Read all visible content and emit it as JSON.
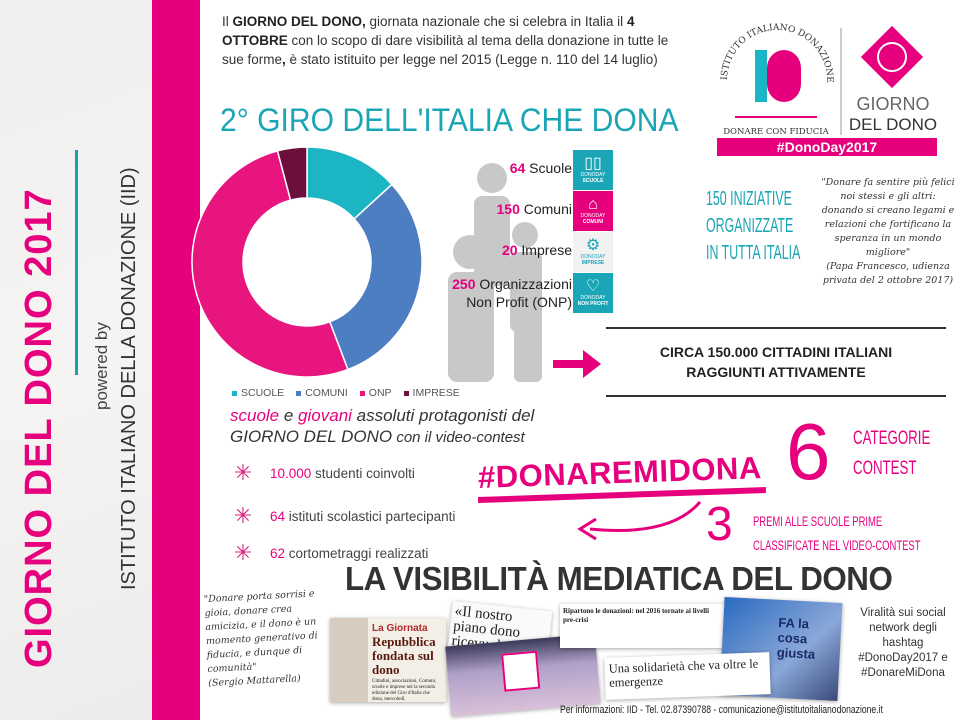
{
  "sidebar": {
    "title": "GIORNO DEL DONO 2017",
    "powered_by": "powered by",
    "institute": "ISTITUTO ITALIANO DELLA DONAZIONE (IID)"
  },
  "intro": {
    "p1": "Il ",
    "b1": "GIORNO DEL DONO,",
    "p2": " giornata nazionale che si celebra in Italia il ",
    "b2": "4 OTTOBRE",
    "p3": " con lo scopo di dare visibilità al tema della donazione in tutte le sue forme",
    "b3": ",",
    "p4": " è stato istituito per legge nel 2015 (Legge n. 110 del 14 luglio)"
  },
  "logo": {
    "arc_text": "ISTITUTO ITALIANO DONAZIONE",
    "monogram": "ID",
    "tagline": "DONARE CON FIDUCIA",
    "giorno": "GIORNO",
    "del_dono": "DEL DONO",
    "hashtag": "#DonoDay2017"
  },
  "section_title": "2° GIRO DELL'ITALIA CHE DONA",
  "chart_data": {
    "type": "pie",
    "donut": true,
    "categories": [
      "SCUOLE",
      "COMUNI",
      "ONP",
      "IMPRESE"
    ],
    "values": [
      64,
      150,
      250,
      20
    ],
    "colors": [
      "#1cb5c4",
      "#4e7ec2",
      "#e8157f",
      "#6c0f3c"
    ],
    "legend_placement": "bottom"
  },
  "counts": [
    {
      "n": "64",
      "label": " Scuole"
    },
    {
      "n": "150",
      "label": " Comuni"
    },
    {
      "n": "20",
      "label": " Imprese"
    },
    {
      "n": "250",
      "label": " Organizzazioni",
      "label2": "Non Profit (ONP)"
    }
  ],
  "tiles": [
    {
      "icon": "book",
      "brand": "DONODAY",
      "label": "SCUOLE",
      "color": "#1ba6b8"
    },
    {
      "icon": "building",
      "brand": "DONODAY",
      "label": "COMUNI",
      "color": "#e6007e"
    },
    {
      "icon": "gears",
      "brand": "DONODAY",
      "label": "IMPRESE",
      "color": "#f2f2f2"
    },
    {
      "icon": "heart",
      "brand": "DONODAY",
      "label": "NON PROFIT",
      "color": "#1ba6b8"
    }
  ],
  "iniziative": [
    "150 INIZIATIVE",
    "ORGANIZZATE",
    "IN TUTTA ITALIA"
  ],
  "quote_pope": {
    "text": "\"Donare fa sentire più felici noi stessi e gli altri: donando si creano legami e relazioni che fortificano la speranza in un mondo migliore\"",
    "source": "(Papa Francesco, udienza privata del 2 ottobre 2017)"
  },
  "citizens": [
    "CIRCA 150.000 CITTADINI ITALIANI",
    "RAGGIUNTI ATTIVAMENTE"
  ],
  "protagonists": {
    "w1": "scuole",
    "w2": " e ",
    "w3": "giovani",
    "w4": " assoluti protagonisti del",
    "line2a": "GIORNO DEL DONO",
    "line2b": " con il video-contest"
  },
  "stats": [
    {
      "n": "10.000",
      "label": " studenti coinvolti"
    },
    {
      "n": "64",
      "label": " istituti scolastici partecipanti"
    },
    {
      "n": "62",
      "label": " cortometraggi realizzati"
    }
  ],
  "contest_hashtag": "#DONAREMIDONA",
  "categories": {
    "n": "6",
    "l1": "CATEGORIE",
    "l2": "CONTEST"
  },
  "prizes": {
    "n": "3",
    "l1": "PREMI ALLE SCUOLE PRIME",
    "l2": "CLASSIFICATE NEL VIDEO-CONTEST"
  },
  "media_title": "LA VISIBILITÀ MEDIATICA DEL DONO",
  "quote_mattarella": {
    "text": "\"Donare porta sorrisi e gioia, donare crea amicizia, e il dono è un momento generativo di fiducia, e dunque di comunità\"",
    "source": "(Sergio Mattarella)"
  },
  "clippings": {
    "c1_kicker": "La Giornata",
    "c1_head": "Repubblica fondata sul dono",
    "c1_body": "Cittadini, associazioni, Comuni, scuole e imprese nel la seconda edizione del Giro d'Italia che dona, mercoledì.",
    "c2_head": "«Il nostro piano dono ricevu da con",
    "c3_head": "Ripartono le donazioni: nel 2016 tornate ai livelli pre-crisi",
    "c4_head": "Una solidarietà che va oltre le emergenze",
    "c5_head": "FA la cosa giusta"
  },
  "viral": "Viralità sui social network degli hashtag #DonoDay2017 e #DonareMiDona",
  "footer": "Per informazioni: IID - Tel. 02.87390788 - comunicazione@istitutoitalianodonazione.it",
  "colors": {
    "pink": "#e6007e",
    "teal": "#1aa5b5"
  }
}
